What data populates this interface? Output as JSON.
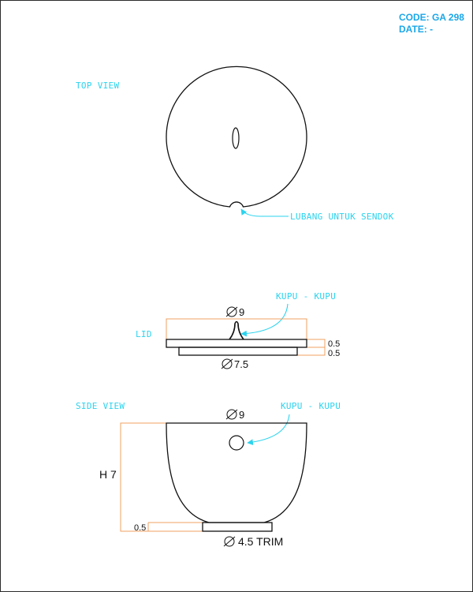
{
  "header": {
    "code": "CODE: GA 298",
    "date": "DATE: -"
  },
  "top_view": {
    "label": "TOP VIEW",
    "note": "LUBANG UNTUK SENDOK"
  },
  "lid": {
    "label": "LID",
    "note": "KUPU - KUPU",
    "dia_top": "9",
    "dia_bottom": "7.5",
    "thick_1": "0.5",
    "thick_2": "0.5"
  },
  "side_view": {
    "label": "SIDE VIEW",
    "note": "KUPU - KUPU",
    "dia_top": "9",
    "height": "H 7",
    "base_thick": "0.5",
    "base_dia": "4.5 TRIM"
  },
  "colors": {
    "annotation": "#2bd3ee",
    "dimension": "#f0a060",
    "outline": "#111111",
    "code": "#1aa7e8"
  }
}
